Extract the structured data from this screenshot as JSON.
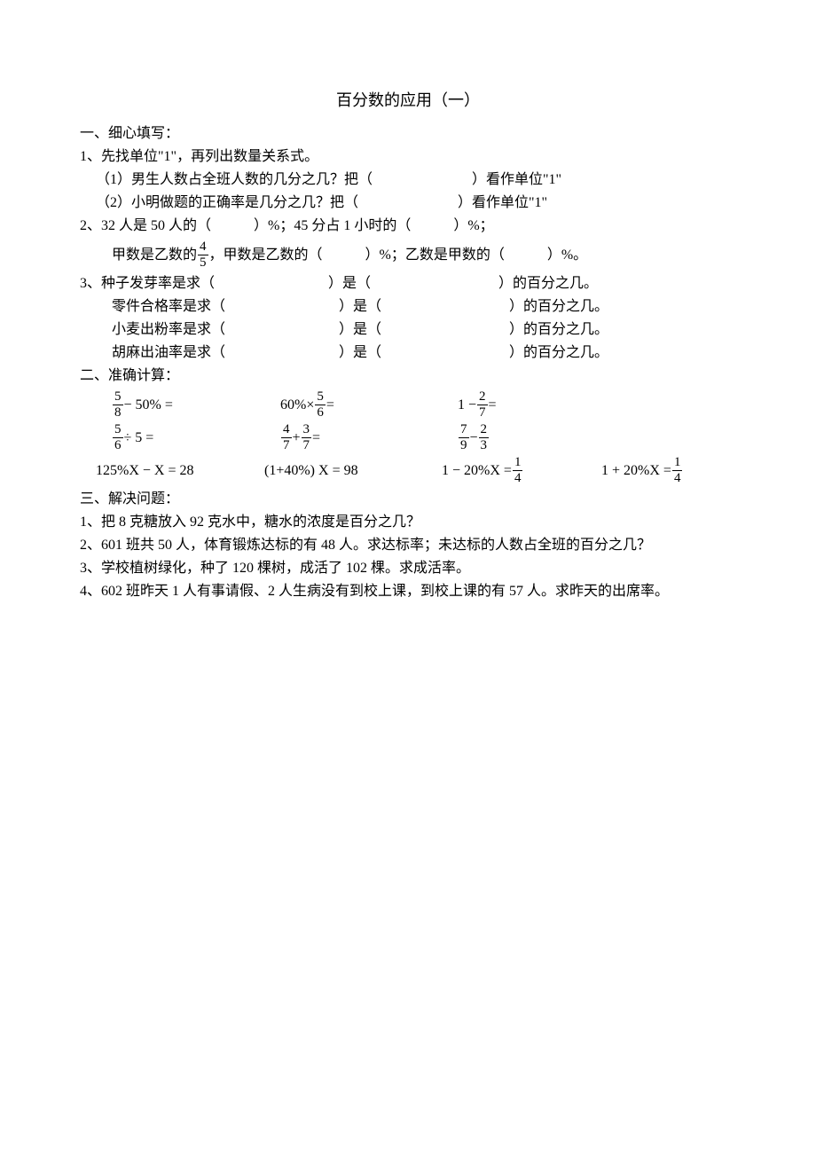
{
  "title": "百分数的应用（一）",
  "section1": {
    "header": "一、细心填写：",
    "q1": {
      "intro": "1、先找单位\"1\"，再列出数量关系式。",
      "sub1": "（1）男生人数占全班人数的几分之几？把（　　　　　　　）看作单位\"1\"",
      "sub2": "（2）小明做题的正确率是几分之几？把（　　　　　　　）看作单位\"1\""
    },
    "q2": {
      "part1_pre": "2、32 人是 50 人的（　　　）%；45 分占 1 小时的（　　　）%；",
      "part2_pre": "甲数是乙数的",
      "part2_frac_num": "4",
      "part2_frac_den": "5",
      "part2_post": "，甲数是乙数的（　　　）%；乙数是甲数的（　　　）%。"
    },
    "q3": {
      "r1": "3、种子发芽率是求（　　　　　　　　）是（　　　　　　　　　）的百分之几。",
      "r2": "零件合格率是求（　　　　　　　　）是（　　　　　　　　　）的百分之几。",
      "r3": "小麦出粉率是求（　　　　　　　　）是（　　　　　　　　　）的百分之几。",
      "r4": "胡麻出油率是求（　　　　　　　　）是（　　　　　　　　　）的百分之几。"
    }
  },
  "section2": {
    "header": "二、准确计算：",
    "row1": {
      "c1_frac_num": "5",
      "c1_frac_den": "8",
      "c1_post": " − 50% =",
      "c2_pre": "60%×",
      "c2_frac_num": "5",
      "c2_frac_den": "6",
      "c2_post": " =",
      "c3_pre": "1 − ",
      "c3_frac_num": "2",
      "c3_frac_den": "7",
      "c3_post": " ="
    },
    "row2": {
      "c1_frac_num": "5",
      "c1_frac_den": "6",
      "c1_post": " ÷ 5 =",
      "c2_f1_num": "4",
      "c2_f1_den": "7",
      "c2_mid": " + ",
      "c2_f2_num": "3",
      "c2_f2_den": "7",
      "c2_post": " =",
      "c3_f1_num": "7",
      "c3_f1_den": "9",
      "c3_mid": " − ",
      "c3_f2_num": "2",
      "c3_f2_den": "3"
    },
    "row3": {
      "c1": "125%X − X = 28",
      "c2": "(1+40%) X = 98",
      "c3_pre": "1 − 20%X = ",
      "c3_frac_num": "1",
      "c3_frac_den": "4",
      "c4_pre": "1 + 20%X = ",
      "c4_frac_num": "1",
      "c4_frac_den": "4"
    }
  },
  "section3": {
    "header": "三、解决问题：",
    "q1": "1、把 8 克糖放入 92 克水中，糖水的浓度是百分之几？",
    "q2": "2、601 班共 50 人，体育锻炼达标的有 48 人。求达标率；未达标的人数占全班的百分之几？",
    "q3": "3、学校植树绿化，种了 120 棵树，成活了 102 棵。求成活率。",
    "q4": "4、602 班昨天 1 人有事请假、2 人生病没有到校上课，到校上课的有 57 人。求昨天的出席率。"
  }
}
